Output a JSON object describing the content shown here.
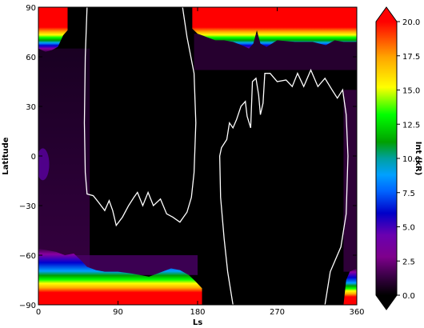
{
  "chart_data": {
    "type": "heatmap",
    "title": "",
    "xlabel": "Ls",
    "ylabel": "Latitude",
    "xlim": [
      0,
      360
    ],
    "ylim": [
      -90,
      90
    ],
    "x_ticks": [
      0,
      90,
      180,
      270,
      360
    ],
    "y_ticks": [
      -90,
      -60,
      -30,
      0,
      30,
      60,
      90
    ],
    "colorbar": {
      "label": "Int (kR)",
      "range": [
        0.0,
        20.0
      ],
      "ticks": [
        "0.0",
        "2.5",
        "5.0",
        "7.5",
        "10.0",
        "12.5",
        "15.0",
        "17.5",
        "20.0"
      ],
      "extend": "both",
      "colors": [
        "#000000",
        "#3a0046",
        "#7e008c",
        "#0000c8",
        "#00a0ff",
        "#00a000",
        "#00ff00",
        "#ffff00",
        "#ffa500",
        "#ff0000"
      ]
    },
    "north_saturation_edge": [
      {
        "ls": 0,
        "lat": 75
      },
      {
        "ls": 8,
        "lat": 73
      },
      {
        "ls": 15,
        "lat": 74
      },
      {
        "ls": 22,
        "lat": 76
      },
      {
        "ls": 28,
        "lat": 83
      },
      {
        "ls": 33,
        "lat": 86
      },
      {
        "ls": 38,
        "lat": 90
      },
      {
        "ls": 170,
        "lat": 90
      },
      {
        "ls": 174,
        "lat": 87
      },
      {
        "ls": 180,
        "lat": 84
      },
      {
        "ls": 190,
        "lat": 82
      },
      {
        "ls": 200,
        "lat": 80
      },
      {
        "ls": 210,
        "lat": 80
      },
      {
        "ls": 220,
        "lat": 79
      },
      {
        "ls": 230,
        "lat": 77
      },
      {
        "ls": 238,
        "lat": 75
      },
      {
        "ls": 243,
        "lat": 78
      },
      {
        "ls": 247,
        "lat": 86
      },
      {
        "ls": 251,
        "lat": 78
      },
      {
        "ls": 258,
        "lat": 76
      },
      {
        "ls": 270,
        "lat": 80
      },
      {
        "ls": 290,
        "lat": 79
      },
      {
        "ls": 310,
        "lat": 79
      },
      {
        "ls": 325,
        "lat": 77
      },
      {
        "ls": 335,
        "lat": 80
      },
      {
        "ls": 345,
        "lat": 79
      },
      {
        "ls": 360,
        "lat": 79
      }
    ],
    "south_saturation_edge": [
      {
        "ls": 0,
        "lat": -66
      },
      {
        "ls": 10,
        "lat": -67
      },
      {
        "ls": 20,
        "lat": -68
      },
      {
        "ls": 30,
        "lat": -70
      },
      {
        "ls": 40,
        "lat": -69
      },
      {
        "ls": 48,
        "lat": -73
      },
      {
        "ls": 55,
        "lat": -77
      },
      {
        "ls": 65,
        "lat": -79
      },
      {
        "ls": 75,
        "lat": -80
      },
      {
        "ls": 90,
        "lat": -80
      },
      {
        "ls": 105,
        "lat": -81
      },
      {
        "ls": 115,
        "lat": -82
      },
      {
        "ls": 125,
        "lat": -83
      },
      {
        "ls": 140,
        "lat": -80
      },
      {
        "ls": 150,
        "lat": -78
      },
      {
        "ls": 160,
        "lat": -79
      },
      {
        "ls": 170,
        "lat": -82
      },
      {
        "ls": 178,
        "lat": -86
      },
      {
        "ls": 185,
        "lat": -90
      }
    ],
    "dark_region_bounds": [
      {
        "ls": 220,
        "lat": -90
      },
      {
        "ls": 213,
        "lat": -80
      },
      {
        "ls": 207,
        "lat": -70
      },
      {
        "ls": 200,
        "lat": -60
      },
      {
        "ls": 193,
        "lat": -45
      }
    ],
    "contours": [
      {
        "name": "north-polar-night-contour",
        "points": [
          {
            "ls": 55,
            "lat": 90
          },
          {
            "ls": 53,
            "lat": 60
          },
          {
            "ls": 52,
            "lat": 20
          },
          {
            "ls": 53,
            "lat": -10
          },
          {
            "ls": 55,
            "lat": -23
          },
          {
            "ls": 62,
            "lat": -24
          },
          {
            "ls": 68,
            "lat": -28
          },
          {
            "ls": 75,
            "lat": -33
          },
          {
            "ls": 80,
            "lat": -27
          },
          {
            "ls": 84,
            "lat": -33
          },
          {
            "ls": 88,
            "lat": -42
          },
          {
            "ls": 95,
            "lat": -37
          },
          {
            "ls": 102,
            "lat": -30
          },
          {
            "ls": 108,
            "lat": -25
          },
          {
            "ls": 112,
            "lat": -22
          },
          {
            "ls": 118,
            "lat": -30
          },
          {
            "ls": 124,
            "lat": -22
          },
          {
            "ls": 130,
            "lat": -30
          },
          {
            "ls": 138,
            "lat": -26
          },
          {
            "ls": 145,
            "lat": -35
          },
          {
            "ls": 152,
            "lat": -37
          },
          {
            "ls": 160,
            "lat": -40
          },
          {
            "ls": 168,
            "lat": -34
          },
          {
            "ls": 173,
            "lat": -25
          },
          {
            "ls": 176,
            "lat": -10
          },
          {
            "ls": 178,
            "lat": 20
          },
          {
            "ls": 176,
            "lat": 50
          },
          {
            "ls": 168,
            "lat": 72
          },
          {
            "ls": 163,
            "lat": 90
          }
        ]
      },
      {
        "name": "south-polar-night-contour",
        "points": [
          {
            "ls": 220,
            "lat": -90
          },
          {
            "ls": 214,
            "lat": -70
          },
          {
            "ls": 210,
            "lat": -50
          },
          {
            "ls": 206,
            "lat": -25
          },
          {
            "ls": 205,
            "lat": 0
          },
          {
            "ls": 207,
            "lat": 5
          },
          {
            "ls": 213,
            "lat": 10
          },
          {
            "ls": 216,
            "lat": 20
          },
          {
            "ls": 220,
            "lat": 17
          },
          {
            "ls": 224,
            "lat": 22
          },
          {
            "ls": 229,
            "lat": 30
          },
          {
            "ls": 234,
            "lat": 33
          },
          {
            "ls": 236,
            "lat": 24
          },
          {
            "ls": 240,
            "lat": 17
          },
          {
            "ls": 242,
            "lat": 45
          },
          {
            "ls": 246,
            "lat": 47
          },
          {
            "ls": 249,
            "lat": 37
          },
          {
            "ls": 251,
            "lat": 25
          },
          {
            "ls": 254,
            "lat": 32
          },
          {
            "ls": 256,
            "lat": 50
          },
          {
            "ls": 262,
            "lat": 50
          },
          {
            "ls": 270,
            "lat": 45
          },
          {
            "ls": 280,
            "lat": 46
          },
          {
            "ls": 287,
            "lat": 42
          },
          {
            "ls": 293,
            "lat": 50
          },
          {
            "ls": 300,
            "lat": 42
          },
          {
            "ls": 308,
            "lat": 52
          },
          {
            "ls": 316,
            "lat": 42
          },
          {
            "ls": 324,
            "lat": 47
          },
          {
            "ls": 332,
            "lat": 40
          },
          {
            "ls": 338,
            "lat": 35
          },
          {
            "ls": 344,
            "lat": 40
          },
          {
            "ls": 348,
            "lat": 25
          },
          {
            "ls": 350,
            "lat": 0
          },
          {
            "ls": 348,
            "lat": -35
          },
          {
            "ls": 342,
            "lat": -55
          },
          {
            "ls": 330,
            "lat": -70
          },
          {
            "ls": 324,
            "lat": -90
          }
        ]
      }
    ]
  }
}
